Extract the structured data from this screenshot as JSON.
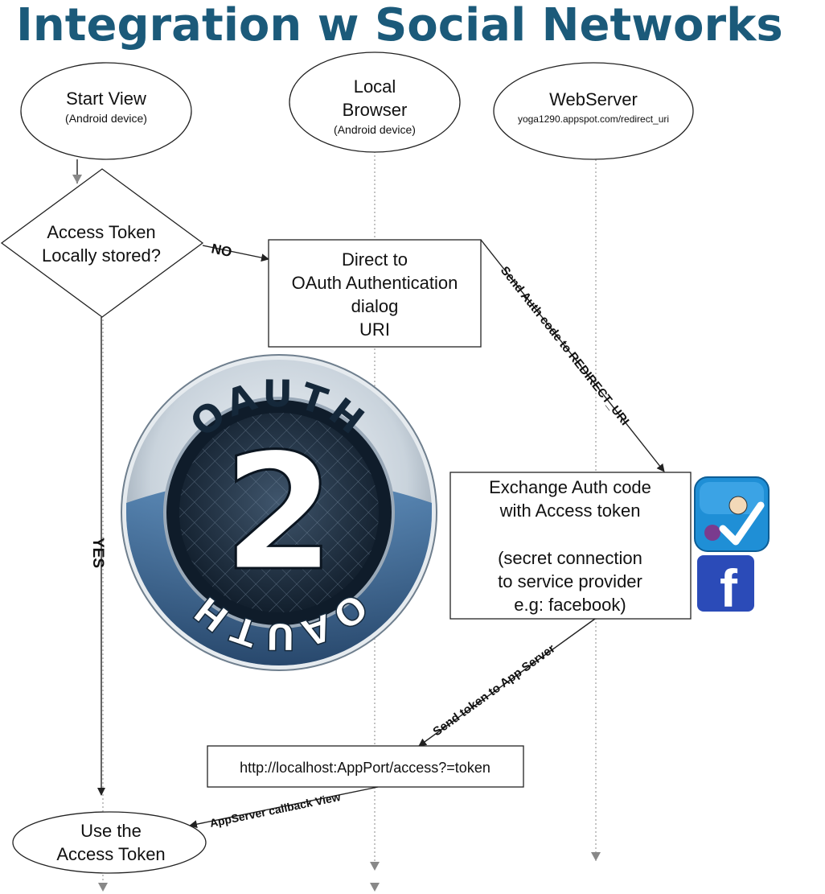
{
  "title": "Integration w Social Networks",
  "lanes": {
    "start_view": {
      "title": "Start View",
      "subtitle": "(Android device)"
    },
    "local_browser": {
      "title_line1": "Local",
      "title_line2": "Browser",
      "subtitle": "(Android device)"
    },
    "webserver": {
      "title": "WebServer",
      "subtitle": "yoga1290.appspot.com/redirect_uri"
    }
  },
  "decision": {
    "line1": "Access Token",
    "line2": "Locally stored?"
  },
  "oauth_box": {
    "line1": "Direct to",
    "line2": "OAuth Authentication",
    "line3": "dialog",
    "line4": "URI"
  },
  "exchange_box": {
    "line1": "Exchange Auth code",
    "line2": "with Access token",
    "line3": "(secret connection",
    "line4": "to service provider",
    "line5": "e.g: facebook)"
  },
  "url_box": {
    "text": "http://localhost:AppPort/access?=token"
  },
  "end_node": {
    "line1": "Use the",
    "line2": "Access Token"
  },
  "edges": {
    "no": "NO",
    "yes": "YES",
    "send_auth_code": "Send Auth code to REDIRECT_URI",
    "send_token": "Send token to App Server",
    "callback": "AppServer callback View"
  },
  "logo": {
    "top_text": "OAUTH",
    "bottom_text": "OAUTH",
    "numeral": "2"
  },
  "icons": {
    "foursquare": "foursquare-icon",
    "facebook": "facebook-icon",
    "facebook_glyph": "f"
  },
  "colors": {
    "title": "#1b5a7a",
    "facebook": "#2b4bb8",
    "foursquare": "#1f8fd6"
  }
}
